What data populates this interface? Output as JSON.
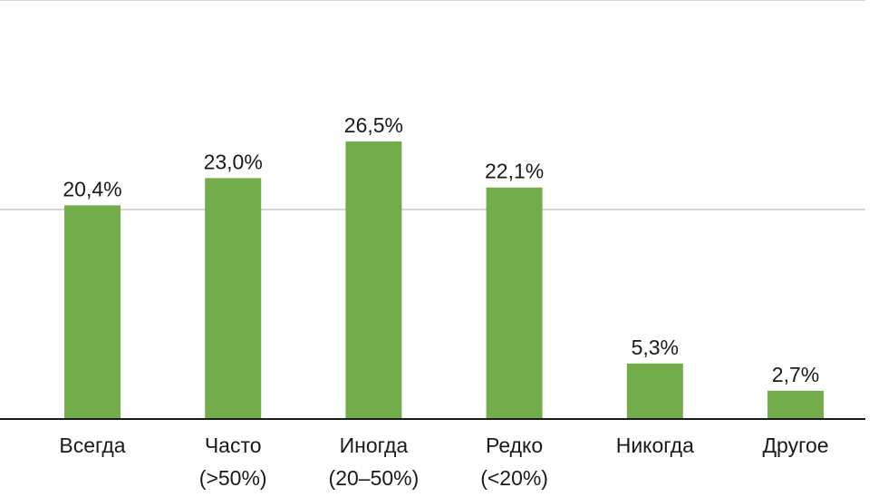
{
  "chart_data": {
    "type": "bar",
    "categories": [
      [
        "Всегда"
      ],
      [
        "Часто",
        "(>50%)"
      ],
      [
        "Иногда",
        "(20–50%)"
      ],
      [
        "Редко",
        "(<20%)"
      ],
      [
        "Никогда"
      ],
      [
        "Другое"
      ]
    ],
    "values": [
      20.4,
      23.0,
      26.5,
      22.1,
      5.3,
      2.7
    ],
    "value_labels": [
      "20,4%",
      "23,0%",
      "26,5%",
      "22,1%",
      "5,3%",
      "2,7%"
    ],
    "title": "",
    "xlabel": "",
    "ylabel": "",
    "ylim": [
      0,
      40
    ],
    "grid": true,
    "bar_color": "#72ac4b",
    "grid_color": "#c8c8c8",
    "axis_color": "#1a1a1a"
  }
}
